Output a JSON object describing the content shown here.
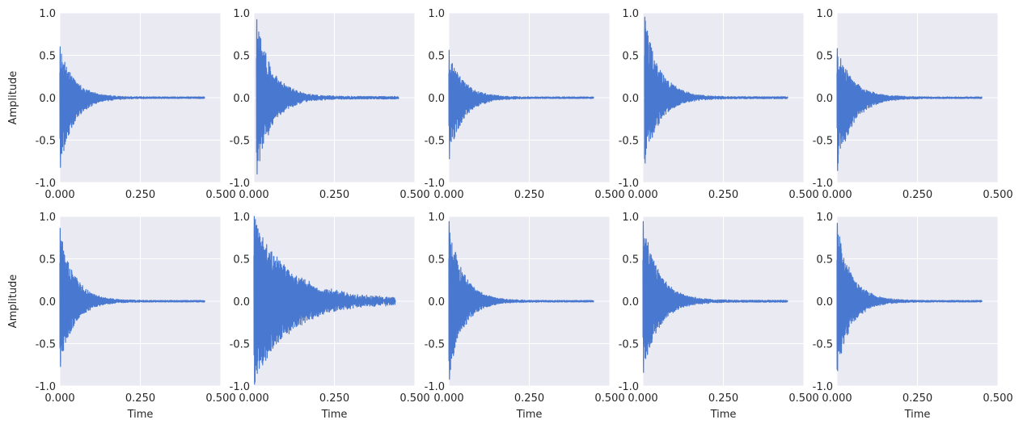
{
  "figure": {
    "ylabel": "Amplitude",
    "xlabel": "Time",
    "colors": {
      "axes_facecolor": "#eaeaf2",
      "grid": "#ffffff",
      "line": "#4878d0",
      "text": "#262626"
    }
  },
  "chart_data": [
    {
      "type": "line",
      "row": 0,
      "col": 0,
      "xlim": [
        0,
        0.5
      ],
      "ylim": [
        -1,
        1
      ],
      "xticks": [
        "0.000",
        "0.250",
        "0.500"
      ],
      "yticks": [
        "1.0",
        "0.5",
        "0.0",
        "-0.5",
        "-1.0"
      ],
      "xlabel": "",
      "ylabel": "Amplitude",
      "signal": {
        "duration": 0.45,
        "onset": 0.0,
        "peak_pos": 0.6,
        "peak_neg": -0.82,
        "decay": 0.045,
        "noise": 0.01,
        "seed": 11
      }
    },
    {
      "type": "line",
      "row": 0,
      "col": 1,
      "xlim": [
        0,
        0.5
      ],
      "ylim": [
        -1,
        1
      ],
      "xticks": [
        "0.000",
        "0.250",
        "0.500"
      ],
      "yticks": [
        "1.0",
        "0.5",
        "0.0",
        "-0.5",
        "-1.0"
      ],
      "xlabel": "",
      "ylabel": "",
      "signal": {
        "duration": 0.45,
        "onset": 0.008,
        "peak_pos": 0.92,
        "peak_neg": -0.9,
        "decay": 0.05,
        "noise": 0.015,
        "seed": 23
      }
    },
    {
      "type": "line",
      "row": 0,
      "col": 2,
      "xlim": [
        0,
        0.5
      ],
      "ylim": [
        -1,
        1
      ],
      "xticks": [
        "0.000",
        "0.250",
        "0.500"
      ],
      "yticks": [
        "1.0",
        "0.5",
        "0.0",
        "-0.5",
        "-1.0"
      ],
      "xlabel": "",
      "ylabel": "",
      "signal": {
        "duration": 0.45,
        "onset": 0.0,
        "peak_pos": 0.56,
        "peak_neg": -0.72,
        "decay": 0.045,
        "noise": 0.01,
        "seed": 37
      }
    },
    {
      "type": "line",
      "row": 0,
      "col": 3,
      "xlim": [
        0,
        0.5
      ],
      "ylim": [
        -1,
        1
      ],
      "xticks": [
        "0.000",
        "0.250",
        "0.500"
      ],
      "yticks": [
        "1.0",
        "0.5",
        "0.0",
        "-0.5",
        "-1.0"
      ],
      "xlabel": "",
      "ylabel": "",
      "signal": {
        "duration": 0.45,
        "onset": 0.005,
        "peak_pos": 0.95,
        "peak_neg": -0.77,
        "decay": 0.048,
        "noise": 0.012,
        "seed": 41
      }
    },
    {
      "type": "line",
      "row": 0,
      "col": 4,
      "xlim": [
        0,
        0.5
      ],
      "ylim": [
        -1,
        1
      ],
      "xticks": [
        "0.000",
        "0.250",
        "0.500"
      ],
      "yticks": [
        "1.0",
        "0.5",
        "0.0",
        "-0.5",
        "-1.0"
      ],
      "xlabel": "",
      "ylabel": "",
      "signal": {
        "duration": 0.45,
        "onset": 0.0,
        "peak_pos": 0.58,
        "peak_neg": -0.86,
        "decay": 0.05,
        "noise": 0.01,
        "seed": 53
      }
    },
    {
      "type": "line",
      "row": 1,
      "col": 0,
      "xlim": [
        0,
        0.5
      ],
      "ylim": [
        -1,
        1
      ],
      "xticks": [
        "0.000",
        "0.250",
        "0.500"
      ],
      "yticks": [
        "1.0",
        "0.5",
        "0.0",
        "-0.5",
        "-1.0"
      ],
      "xlabel": "Time",
      "ylabel": "Amplitude",
      "signal": {
        "duration": 0.45,
        "onset": 0.0,
        "peak_pos": 0.86,
        "peak_neg": -0.77,
        "decay": 0.045,
        "noise": 0.01,
        "seed": 61
      }
    },
    {
      "type": "line",
      "row": 1,
      "col": 1,
      "xlim": [
        0,
        0.5
      ],
      "ylim": [
        -1,
        1
      ],
      "xticks": [
        "0.000",
        "0.250",
        "0.500"
      ],
      "yticks": [
        "1.0",
        "0.5",
        "0.0",
        "-0.5",
        "-1.0"
      ],
      "xlabel": "Time",
      "ylabel": "",
      "signal": {
        "duration": 0.44,
        "onset": 0.0,
        "peak_pos": 1.0,
        "peak_neg": -0.98,
        "decay": 0.11,
        "noise": 0.035,
        "seed": 71
      }
    },
    {
      "type": "line",
      "row": 1,
      "col": 2,
      "xlim": [
        0,
        0.5
      ],
      "ylim": [
        -1,
        1
      ],
      "xticks": [
        "0.000",
        "0.250",
        "0.500"
      ],
      "yticks": [
        "1.0",
        "0.5",
        "0.0",
        "-0.5",
        "-1.0"
      ],
      "xlabel": "Time",
      "ylabel": "",
      "signal": {
        "duration": 0.45,
        "onset": 0.0,
        "peak_pos": 0.94,
        "peak_neg": -0.92,
        "decay": 0.045,
        "noise": 0.01,
        "seed": 83
      }
    },
    {
      "type": "line",
      "row": 1,
      "col": 3,
      "xlim": [
        0,
        0.5
      ],
      "ylim": [
        -1,
        1
      ],
      "xticks": [
        "0.000",
        "0.250",
        "0.500"
      ],
      "yticks": [
        "1.0",
        "0.5",
        "0.0",
        "-0.5",
        "-1.0"
      ],
      "xlabel": "Time",
      "ylabel": "",
      "signal": {
        "duration": 0.45,
        "onset": 0.0,
        "peak_pos": 0.94,
        "peak_neg": -0.84,
        "decay": 0.05,
        "noise": 0.012,
        "seed": 97
      }
    },
    {
      "type": "line",
      "row": 1,
      "col": 4,
      "xlim": [
        0,
        0.5
      ],
      "ylim": [
        -1,
        1
      ],
      "xticks": [
        "0.000",
        "0.250",
        "0.500"
      ],
      "yticks": [
        "1.0",
        "0.5",
        "0.0",
        "-0.5",
        "-1.0"
      ],
      "xlabel": "Time",
      "ylabel": "",
      "signal": {
        "duration": 0.45,
        "onset": 0.0,
        "peak_pos": 0.92,
        "peak_neg": -0.82,
        "decay": 0.045,
        "noise": 0.01,
        "seed": 101
      }
    }
  ]
}
